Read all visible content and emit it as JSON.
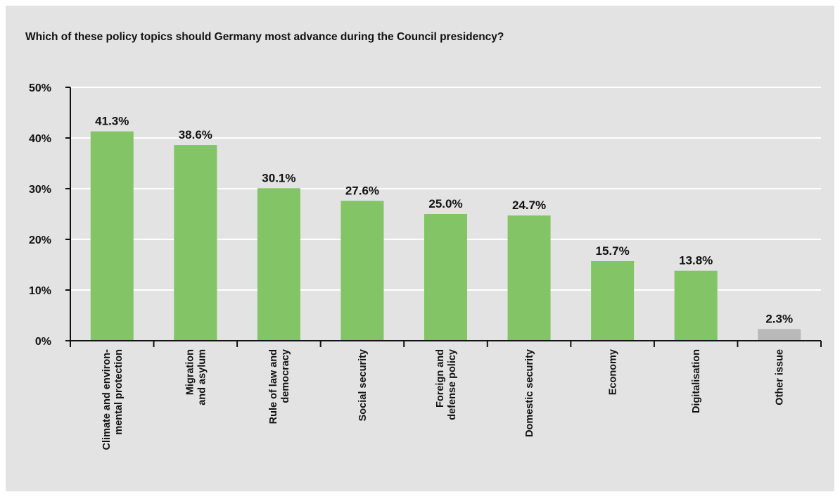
{
  "chart_data": {
    "type": "bar",
    "title": "Which of these policy topics should Germany most advance during the Council presidency?",
    "categories": [
      [
        "Climate and environ-",
        "mental protection"
      ],
      [
        "Migration",
        "and asylum"
      ],
      [
        "Rule of law and",
        "democracy"
      ],
      [
        "Social security"
      ],
      [
        "Foreign and",
        "defense policy"
      ],
      [
        "Domestic security"
      ],
      [
        "Economy"
      ],
      [
        "Digitalisation"
      ],
      [
        "Other issue"
      ]
    ],
    "values": [
      41.3,
      38.6,
      30.1,
      27.6,
      25.0,
      24.7,
      15.7,
      13.8,
      2.3
    ],
    "value_labels": [
      "41.3%",
      "38.6%",
      "30.1%",
      "27.6%",
      "25.0%",
      "24.7%",
      "15.7%",
      "13.8%",
      "2.3%"
    ],
    "bar_colors": [
      "#82c466",
      "#82c466",
      "#82c466",
      "#82c466",
      "#82c466",
      "#82c466",
      "#82c466",
      "#82c466",
      "#b9b9b9"
    ],
    "ylim": [
      0,
      50
    ],
    "yticks": [
      "0%",
      "10%",
      "20%",
      "30%",
      "40%",
      "50%"
    ],
    "xlabel": "",
    "ylabel": "",
    "grid": true,
    "background": "#e3e3e3"
  }
}
